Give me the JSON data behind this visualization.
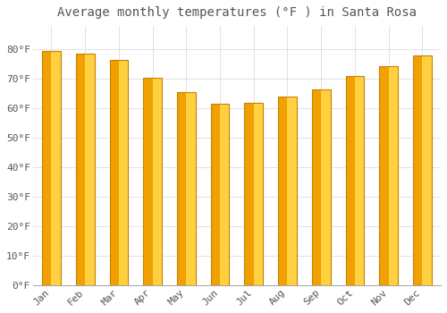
{
  "title": "Average monthly temperatures (°F ) in Santa Rosa",
  "months": [
    "Jan",
    "Feb",
    "Mar",
    "Apr",
    "May",
    "Jun",
    "Jul",
    "Aug",
    "Sep",
    "Oct",
    "Nov",
    "Dec"
  ],
  "values": [
    79.5,
    78.5,
    76.5,
    70.5,
    65.5,
    61.5,
    62.0,
    64.0,
    66.5,
    71.0,
    74.5,
    78.0
  ],
  "bar_color_dark": "#F0A000",
  "bar_color_light": "#FFD040",
  "bar_edge_color": "#C88000",
  "ylim": [
    0,
    88
  ],
  "yticks": [
    0,
    10,
    20,
    30,
    40,
    50,
    60,
    70,
    80
  ],
  "ytick_labels": [
    "0°F",
    "10°F",
    "20°F",
    "30°F",
    "40°F",
    "50°F",
    "60°F",
    "70°F",
    "80°F"
  ],
  "background_color": "#FFFFFF",
  "plot_bg_color": "#FFFFFF",
  "grid_color": "#DDDDDD",
  "title_fontsize": 10,
  "tick_fontsize": 8,
  "title_color": "#555555",
  "tick_color": "#555555"
}
